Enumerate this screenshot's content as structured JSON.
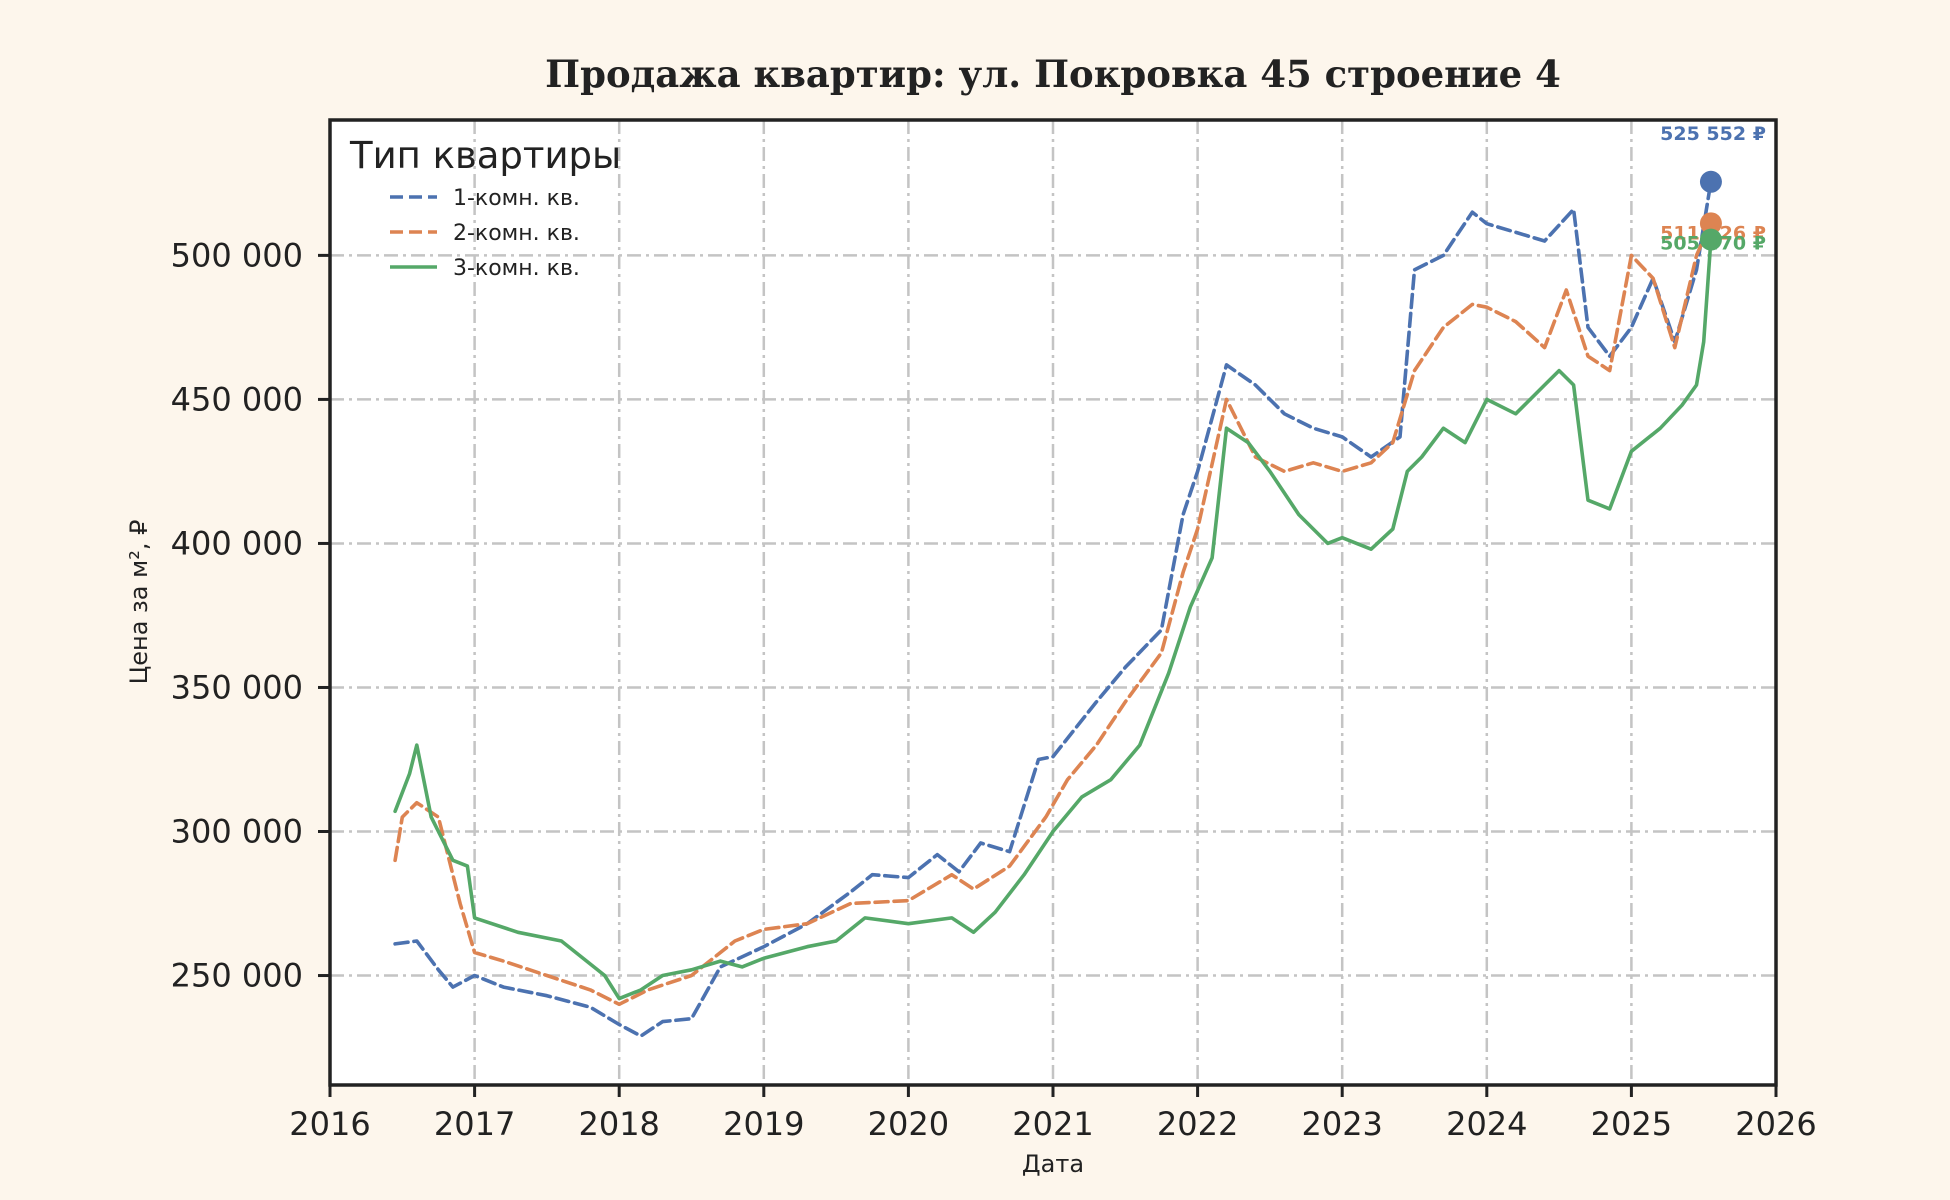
{
  "chart_data": {
    "type": "line",
    "title": "Продажа квартир: ул. Покровка 45 строение 4",
    "xlabel": "Дата",
    "ylabel": "Цена за м², ₽",
    "xlim": [
      2016.0,
      2026.0
    ],
    "ylim": [
      212000,
      547000
    ],
    "x_ticks": [
      2016,
      2017,
      2018,
      2019,
      2020,
      2021,
      2022,
      2023,
      2024,
      2025,
      2026
    ],
    "x_tick_labels": [
      "2016",
      "2017",
      "2018",
      "2019",
      "2020",
      "2021",
      "2022",
      "2023",
      "2024",
      "2025",
      "2026"
    ],
    "y_ticks": [
      250000,
      300000,
      350000,
      400000,
      450000,
      500000
    ],
    "y_tick_labels": [
      "250 000",
      "300 000",
      "350 000",
      "400 000",
      "450 000",
      "500 000"
    ],
    "grid": true,
    "legend": {
      "title": "Тип квартиры",
      "placement": "top-left"
    },
    "series": [
      {
        "name": "1-комн. кв.",
        "color": "#4c72b0",
        "dash": "dashed",
        "end_label": "525 552 ₽",
        "end_value": 525552,
        "x": [
          2016.45,
          2016.6,
          2016.75,
          2016.85,
          2017.0,
          2017.2,
          2017.5,
          2017.8,
          2018.0,
          2018.15,
          2018.3,
          2018.5,
          2018.7,
          2019.0,
          2019.3,
          2019.6,
          2019.75,
          2020.0,
          2020.2,
          2020.35,
          2020.5,
          2020.7,
          2020.9,
          2021.0,
          2021.3,
          2021.5,
          2021.75,
          2021.9,
          2022.0,
          2022.2,
          2022.4,
          2022.6,
          2022.8,
          2023.0,
          2023.2,
          2023.4,
          2023.5,
          2023.7,
          2023.9,
          2024.0,
          2024.2,
          2024.4,
          2024.6,
          2024.7,
          2024.85,
          2025.0,
          2025.15,
          2025.3,
          2025.45,
          2025.55
        ],
        "y": [
          261000,
          262000,
          252000,
          246000,
          250000,
          246000,
          243000,
          239000,
          233000,
          229000,
          234000,
          235000,
          253000,
          260000,
          268000,
          279000,
          285000,
          284000,
          292000,
          286000,
          296000,
          293000,
          325000,
          326000,
          345000,
          357000,
          370000,
          410000,
          425000,
          462000,
          455000,
          445000,
          440000,
          437000,
          430000,
          437000,
          495000,
          500000,
          515000,
          511000,
          508000,
          505000,
          516000,
          475000,
          465000,
          475000,
          492000,
          470000,
          495000,
          525552
        ]
      },
      {
        "name": "2-комн. кв.",
        "color": "#dd8452",
        "dash": "dashed",
        "end_label": "511 126 ₽",
        "end_value": 511126,
        "x": [
          2016.45,
          2016.5,
          2016.6,
          2016.75,
          2016.9,
          2017.0,
          2017.2,
          2017.5,
          2017.8,
          2018.0,
          2018.2,
          2018.5,
          2018.8,
          2019.0,
          2019.3,
          2019.6,
          2020.0,
          2020.3,
          2020.45,
          2020.7,
          2020.95,
          2021.1,
          2021.3,
          2021.5,
          2021.75,
          2021.9,
          2022.0,
          2022.2,
          2022.4,
          2022.6,
          2022.8,
          2023.0,
          2023.2,
          2023.35,
          2023.5,
          2023.7,
          2023.9,
          2024.0,
          2024.2,
          2024.4,
          2024.55,
          2024.7,
          2024.85,
          2025.0,
          2025.15,
          2025.3,
          2025.45,
          2025.55
        ],
        "y": [
          290000,
          305000,
          310000,
          305000,
          275000,
          258000,
          255000,
          250000,
          245000,
          240000,
          245000,
          250000,
          262000,
          266000,
          268000,
          275000,
          276000,
          285000,
          280000,
          288000,
          305000,
          318000,
          330000,
          345000,
          362000,
          390000,
          405000,
          450000,
          430000,
          425000,
          428000,
          425000,
          428000,
          435000,
          460000,
          475000,
          483000,
          482000,
          477000,
          468000,
          488000,
          465000,
          460000,
          500000,
          492000,
          468000,
          500000,
          511126
        ]
      },
      {
        "name": "3-комн. кв.",
        "color": "#55a868",
        "dash": "solid",
        "end_label": "505 470 ₽",
        "end_value": 505470,
        "x": [
          2016.45,
          2016.55,
          2016.6,
          2016.7,
          2016.85,
          2016.95,
          2017.0,
          2017.3,
          2017.6,
          2017.9,
          2018.0,
          2018.15,
          2018.3,
          2018.5,
          2018.7,
          2018.85,
          2019.0,
          2019.3,
          2019.5,
          2019.7,
          2020.0,
          2020.3,
          2020.45,
          2020.6,
          2020.8,
          2021.0,
          2021.2,
          2021.4,
          2021.6,
          2021.8,
          2021.95,
          2022.1,
          2022.2,
          2022.35,
          2022.5,
          2022.7,
          2022.9,
          2023.0,
          2023.2,
          2023.35,
          2023.45,
          2023.55,
          2023.7,
          2023.85,
          2024.0,
          2024.2,
          2024.4,
          2024.5,
          2024.6,
          2024.7,
          2024.85,
          2025.0,
          2025.2,
          2025.35,
          2025.45,
          2025.5,
          2025.55
        ],
        "y": [
          307000,
          320000,
          330000,
          305000,
          290000,
          288000,
          270000,
          265000,
          262000,
          250000,
          242000,
          245000,
          250000,
          252000,
          255000,
          253000,
          256000,
          260000,
          262000,
          270000,
          268000,
          270000,
          265000,
          272000,
          285000,
          300000,
          312000,
          318000,
          330000,
          355000,
          378000,
          395000,
          440000,
          435000,
          425000,
          410000,
          400000,
          402000,
          398000,
          405000,
          425000,
          430000,
          440000,
          435000,
          450000,
          445000,
          455000,
          460000,
          455000,
          415000,
          412000,
          432000,
          440000,
          448000,
          455000,
          470000,
          505470
        ]
      }
    ]
  }
}
